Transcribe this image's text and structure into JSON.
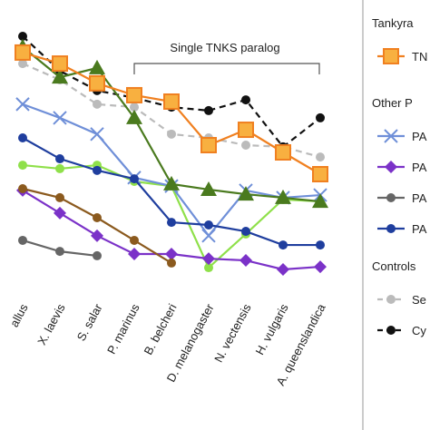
{
  "chart_data": {
    "type": "line",
    "annotation": "Single TNKS paralog",
    "legend_headings": [
      "Tankyra",
      "Other P",
      "Controls"
    ],
    "categories": [
      "allus",
      "X. laevis",
      "S. salar",
      "P. marinus",
      "B. belcheri",
      "D. melanogaster",
      "N. vectensis",
      "H. vulgaris",
      "A. queenslandica"
    ],
    "ylim": [
      0,
      100
    ],
    "series": [
      {
        "name": "Se",
        "color": "#bbbbbb",
        "marker": "circle",
        "dash": true,
        "legend_group": 2,
        "values": [
          78.1,
          72.5,
          64.1,
          63.1,
          53.8,
          52.5,
          50,
          49.4,
          45.9
        ]
      },
      {
        "name": "Cy",
        "color": "#111111",
        "marker": "circle",
        "dash": true,
        "legend_group": 2,
        "values": [
          87.5,
          75.6,
          68.8,
          66.3,
          63.1,
          61.9,
          65.6,
          49.4,
          59.4
        ]
      },
      {
        "color": "#8fe04a",
        "marker": "circle",
        "dash": false,
        "values": [
          43.1,
          41.9,
          43.1,
          37.5,
          35.9,
          7.8,
          19.4,
          31.3,
          30.6
        ]
      },
      {
        "name": "PA",
        "color": "#6f8fd8",
        "marker": "cross",
        "dash": false,
        "legend_group": 1,
        "values": [
          64.1,
          59.4,
          53.8,
          38.8,
          35.9,
          18.8,
          34.4,
          31.9,
          32.8
        ]
      },
      {
        "name": "PA",
        "color": "#7b32c8",
        "marker": "diamond",
        "dash": false,
        "legend_group": 1,
        "values": [
          34.4,
          26.6,
          18.8,
          12.5,
          12.5,
          10.9,
          10.3,
          7.2,
          8.1
        ]
      },
      {
        "name": "PA",
        "color": "#666666",
        "marker": "circle",
        "dash": false,
        "legend_group": 1,
        "values": [
          17.2,
          13.4,
          11.9,
          null,
          null,
          null,
          null,
          null,
          null
        ]
      },
      {
        "name": "PA",
        "color": "#1f3e9e",
        "marker": "circle",
        "dash": false,
        "legend_group": 1,
        "values": [
          52.5,
          45.3,
          41.3,
          38.4,
          23.4,
          22.5,
          20.3,
          15.6,
          15.6
        ]
      },
      {
        "color": "#8b5a1e",
        "marker": "circle",
        "dash": false,
        "values": [
          35,
          31.9,
          25,
          17.2,
          9.4,
          null,
          null,
          null,
          null
        ]
      },
      {
        "color": "#4a7a1e",
        "marker": "triangle",
        "dash": false,
        "values": [
          83.8,
          73.4,
          76.6,
          59.4,
          36.6,
          34.7,
          33.1,
          31.9,
          30.6
        ]
      },
      {
        "name": "TN",
        "color": "#f08020",
        "marker": "square",
        "dash": false,
        "legend_group": 0,
        "values": [
          81.9,
          78.1,
          71.3,
          67.2,
          65,
          50,
          55.3,
          47.5,
          40
        ]
      }
    ]
  }
}
